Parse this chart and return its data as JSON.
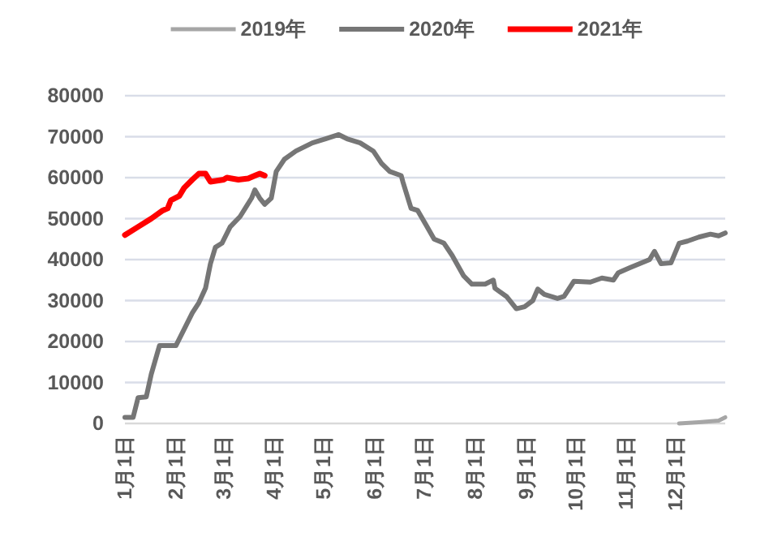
{
  "chart_data": {
    "type": "line",
    "legend": "top",
    "grid": "y",
    "line_style": "solid",
    "marker": "none",
    "xlim": [
      "--01-01",
      "--12-31"
    ],
    "xticks": [
      {
        "value": "--01-01",
        "label": "1月1日"
      },
      {
        "value": "--02-01",
        "label": "2月1日"
      },
      {
        "value": "--03-01",
        "label": "3月1日"
      },
      {
        "value": "--04-01",
        "label": "4月1日"
      },
      {
        "value": "--05-01",
        "label": "5月1日"
      },
      {
        "value": "--06-01",
        "label": "6月1日"
      },
      {
        "value": "--07-01",
        "label": "7月1日"
      },
      {
        "value": "--08-01",
        "label": "8月1日"
      },
      {
        "value": "--09-01",
        "label": "9月1日"
      },
      {
        "value": "--10-01",
        "label": "10月1日"
      },
      {
        "value": "--11-01",
        "label": "11月1日"
      },
      {
        "value": "--12-01",
        "label": "12月1日"
      }
    ],
    "ylim": [
      0,
      80000
    ],
    "yticks": [
      0,
      10000,
      20000,
      30000,
      40000,
      50000,
      60000,
      70000,
      80000
    ],
    "series": [
      {
        "name": "2019年",
        "color": "#a6a6a6",
        "x": [
          "--12-03",
          "--12-15",
          "--12-27",
          "--12-31"
        ],
        "values": [
          0,
          300,
          700,
          1500
        ]
      },
      {
        "name": "2020年",
        "color": "#767676",
        "x": [
          "--01-01",
          "--01-06",
          "--01-09",
          "--01-14",
          "--01-17",
          "--01-22",
          "--02-01",
          "--02-06",
          "--02-11",
          "--02-15",
          "--02-19",
          "--02-22",
          "--02-25",
          "--02-29",
          "--03-05",
          "--03-11",
          "--03-18",
          "--03-20",
          "--03-23",
          "--03-26",
          "--03-30",
          "--04-02",
          "--04-07",
          "--04-14",
          "--04-24",
          "--05-02",
          "--05-10",
          "--05-15",
          "--05-23",
          "--05-31",
          "--06-05",
          "--06-10",
          "--06-17",
          "--06-18",
          "--06-23",
          "--06-27",
          "--07-02",
          "--07-07",
          "--07-13",
          "--07-18",
          "--07-25",
          "--07-30",
          "--08-07",
          "--08-12",
          "--08-13",
          "--08-20",
          "--08-26",
          "--08-31",
          "--09-05",
          "--09-08",
          "--09-12",
          "--09-20",
          "--09-24",
          "--09-30",
          "--10-10",
          "--10-17",
          "--10-24",
          "--10-27",
          "--11-03",
          "--11-09",
          "--11-15",
          "--11-18",
          "--11-22",
          "--11-28",
          "--12-03",
          "--12-08",
          "--12-15",
          "--12-22",
          "--12-27",
          "--12-31"
        ],
        "values": [
          1500,
          1500,
          6300,
          6500,
          12000,
          19000,
          19000,
          23000,
          27000,
          29500,
          33000,
          39000,
          43000,
          44000,
          48000,
          50500,
          55000,
          57000,
          55000,
          53500,
          55000,
          61500,
          64500,
          66500,
          68500,
          69500,
          70500,
          69500,
          68500,
          66500,
          63500,
          61500,
          60500,
          59000,
          52500,
          52000,
          48500,
          45000,
          44000,
          41000,
          36000,
          34000,
          34000,
          35000,
          33000,
          31000,
          28000,
          28500,
          30000,
          32800,
          31500,
          30500,
          31000,
          34700,
          34500,
          35500,
          35000,
          36800,
          38000,
          39000,
          40000,
          42000,
          39000,
          39200,
          44000,
          44500,
          45500,
          46200,
          45800,
          46500
        ]
      },
      {
        "name": "2021年",
        "color": "#ff0000",
        "x": [
          "--01-01",
          "--01-09",
          "--01-17",
          "--01-24",
          "--01-27",
          "--01-29",
          "--02-03",
          "--02-06",
          "--02-11",
          "--02-15",
          "--02-19",
          "--02-22",
          "--03-01",
          "--03-03",
          "--03-10",
          "--03-16",
          "--03-20",
          "--03-23",
          "--03-26"
        ],
        "values": [
          46000,
          48000,
          50000,
          52000,
          52500,
          54500,
          55500,
          57500,
          59500,
          61000,
          61000,
          59000,
          59500,
          60000,
          59500,
          59800,
          60500,
          61000,
          60500
        ]
      }
    ]
  }
}
